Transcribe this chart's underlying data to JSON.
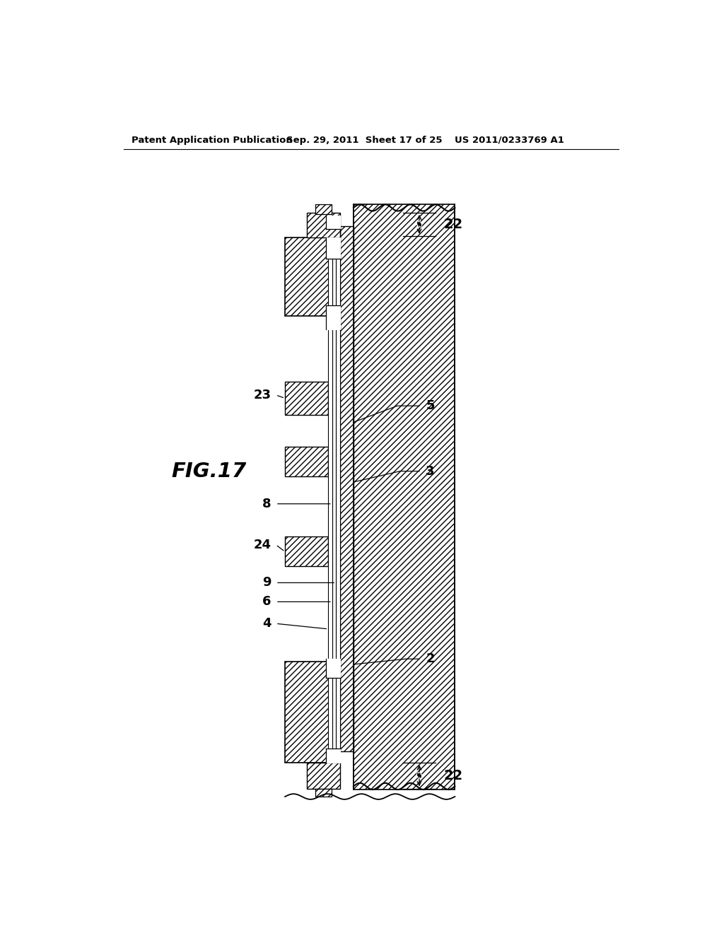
{
  "bg_color": "#ffffff",
  "header_left": "Patent Application Publication",
  "header_mid": "Sep. 29, 2011  Sheet 17 of 25",
  "header_right": "US 2011/0233769 A1",
  "fig_label": "FIG.17"
}
